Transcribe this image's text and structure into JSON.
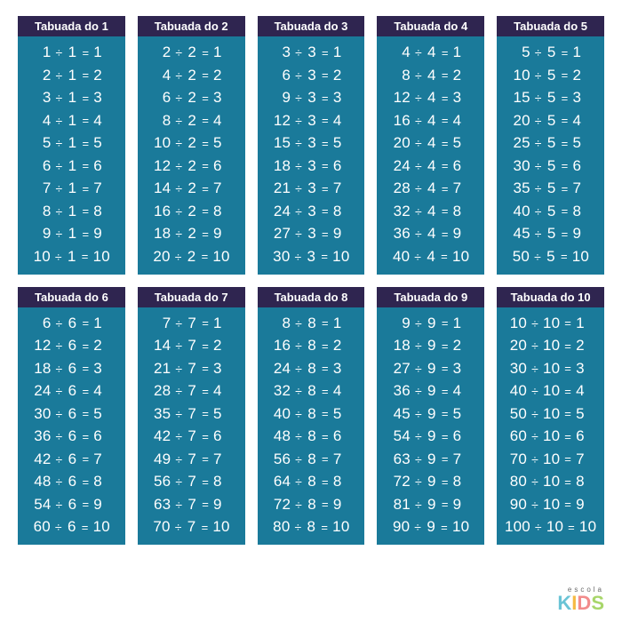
{
  "colors": {
    "header_bg": "#2f2550",
    "body_bg": "#1a7a9a",
    "text": "#ffffff",
    "page_bg": "#ffffff"
  },
  "logo": {
    "top": "escola",
    "letters": [
      "K",
      "I",
      "D",
      "S"
    ]
  },
  "tables": [
    {
      "title": "Tabuada do 1",
      "divisor": 1,
      "rows": [
        [
          1,
          1,
          1
        ],
        [
          2,
          1,
          2
        ],
        [
          3,
          1,
          3
        ],
        [
          4,
          1,
          4
        ],
        [
          5,
          1,
          5
        ],
        [
          6,
          1,
          6
        ],
        [
          7,
          1,
          7
        ],
        [
          8,
          1,
          8
        ],
        [
          9,
          1,
          9
        ],
        [
          10,
          1,
          10
        ]
      ]
    },
    {
      "title": "Tabuada do 2",
      "divisor": 2,
      "rows": [
        [
          2,
          2,
          1
        ],
        [
          4,
          2,
          2
        ],
        [
          6,
          2,
          3
        ],
        [
          8,
          2,
          4
        ],
        [
          10,
          2,
          5
        ],
        [
          12,
          2,
          6
        ],
        [
          14,
          2,
          7
        ],
        [
          16,
          2,
          8
        ],
        [
          18,
          2,
          9
        ],
        [
          20,
          2,
          10
        ]
      ]
    },
    {
      "title": "Tabuada do 3",
      "divisor": 3,
      "rows": [
        [
          3,
          3,
          1
        ],
        [
          6,
          3,
          2
        ],
        [
          9,
          3,
          3
        ],
        [
          12,
          3,
          4
        ],
        [
          15,
          3,
          5
        ],
        [
          18,
          3,
          6
        ],
        [
          21,
          3,
          7
        ],
        [
          24,
          3,
          8
        ],
        [
          27,
          3,
          9
        ],
        [
          30,
          3,
          10
        ]
      ]
    },
    {
      "title": "Tabuada do 4",
      "divisor": 4,
      "rows": [
        [
          4,
          4,
          1
        ],
        [
          8,
          4,
          2
        ],
        [
          12,
          4,
          3
        ],
        [
          16,
          4,
          4
        ],
        [
          20,
          4,
          5
        ],
        [
          24,
          4,
          6
        ],
        [
          28,
          4,
          7
        ],
        [
          32,
          4,
          8
        ],
        [
          36,
          4,
          9
        ],
        [
          40,
          4,
          10
        ]
      ]
    },
    {
      "title": "Tabuada do 5",
      "divisor": 5,
      "rows": [
        [
          5,
          5,
          1
        ],
        [
          10,
          5,
          2
        ],
        [
          15,
          5,
          3
        ],
        [
          20,
          5,
          4
        ],
        [
          25,
          5,
          5
        ],
        [
          30,
          5,
          6
        ],
        [
          35,
          5,
          7
        ],
        [
          40,
          5,
          8
        ],
        [
          45,
          5,
          9
        ],
        [
          50,
          5,
          10
        ]
      ]
    },
    {
      "title": "Tabuada do 6",
      "divisor": 6,
      "rows": [
        [
          6,
          6,
          1
        ],
        [
          12,
          6,
          2
        ],
        [
          18,
          6,
          3
        ],
        [
          24,
          6,
          4
        ],
        [
          30,
          6,
          5
        ],
        [
          36,
          6,
          6
        ],
        [
          42,
          6,
          7
        ],
        [
          48,
          6,
          8
        ],
        [
          54,
          6,
          9
        ],
        [
          60,
          6,
          10
        ]
      ]
    },
    {
      "title": "Tabuada do 7",
      "divisor": 7,
      "rows": [
        [
          7,
          7,
          1
        ],
        [
          14,
          7,
          2
        ],
        [
          21,
          7,
          3
        ],
        [
          28,
          7,
          4
        ],
        [
          35,
          7,
          5
        ],
        [
          42,
          7,
          6
        ],
        [
          49,
          7,
          7
        ],
        [
          56,
          7,
          8
        ],
        [
          63,
          7,
          9
        ],
        [
          70,
          7,
          10
        ]
      ]
    },
    {
      "title": "Tabuada do 8",
      "divisor": 8,
      "rows": [
        [
          8,
          8,
          1
        ],
        [
          16,
          8,
          2
        ],
        [
          24,
          8,
          3
        ],
        [
          32,
          8,
          4
        ],
        [
          40,
          8,
          5
        ],
        [
          48,
          8,
          6
        ],
        [
          56,
          8,
          7
        ],
        [
          64,
          8,
          8
        ],
        [
          72,
          8,
          9
        ],
        [
          80,
          8,
          10
        ]
      ]
    },
    {
      "title": "Tabuada do 9",
      "divisor": 9,
      "rows": [
        [
          9,
          9,
          1
        ],
        [
          18,
          9,
          2
        ],
        [
          27,
          9,
          3
        ],
        [
          36,
          9,
          4
        ],
        [
          45,
          9,
          5
        ],
        [
          54,
          9,
          6
        ],
        [
          63,
          9,
          7
        ],
        [
          72,
          9,
          8
        ],
        [
          81,
          9,
          9
        ],
        [
          90,
          9,
          10
        ]
      ]
    },
    {
      "title": "Tabuada do 10",
      "divisor": 10,
      "rows": [
        [
          10,
          10,
          1
        ],
        [
          20,
          10,
          2
        ],
        [
          30,
          10,
          3
        ],
        [
          40,
          10,
          4
        ],
        [
          50,
          10,
          5
        ],
        [
          60,
          10,
          6
        ],
        [
          70,
          10,
          7
        ],
        [
          80,
          10,
          8
        ],
        [
          90,
          10,
          9
        ],
        [
          100,
          10,
          10
        ]
      ]
    }
  ]
}
